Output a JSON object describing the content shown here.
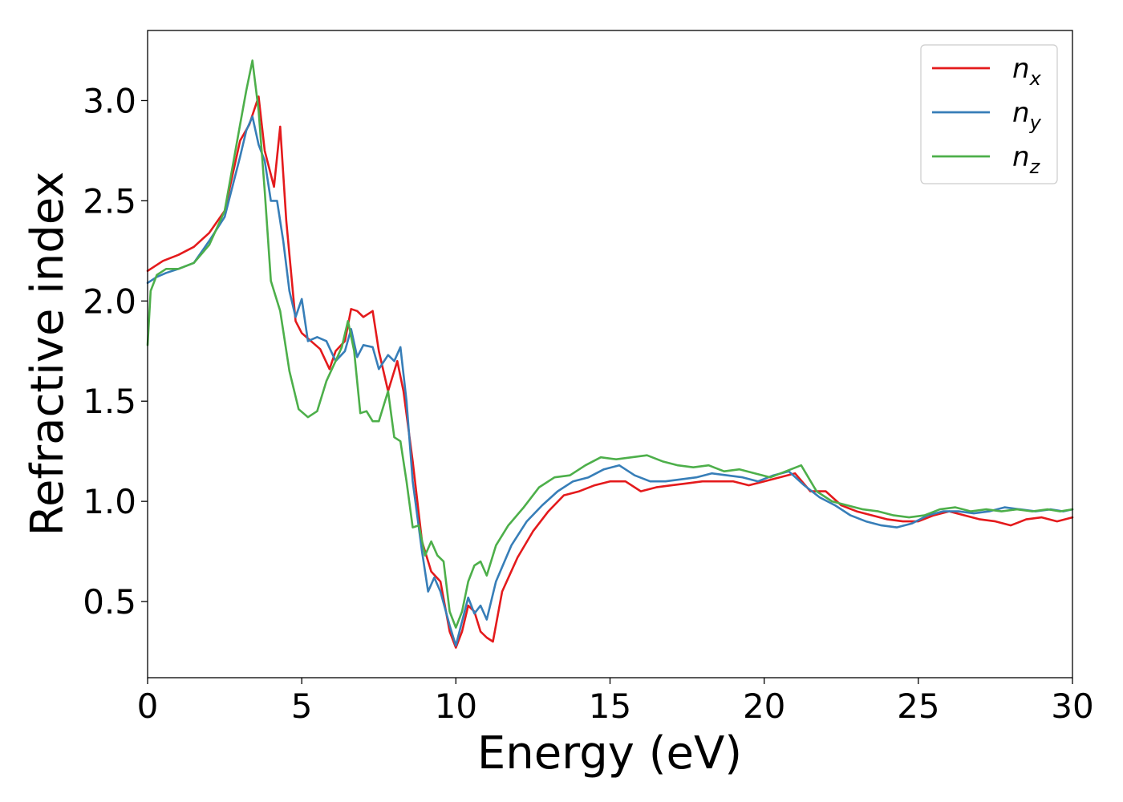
{
  "chart_data": {
    "type": "line",
    "xlabel": "Energy (eV)",
    "ylabel": "Refractive index",
    "xlim": [
      0,
      30
    ],
    "ylim": [
      0.12,
      3.35
    ],
    "xticks": [
      "0",
      "5",
      "10",
      "15",
      "20",
      "25",
      "30"
    ],
    "yticks": [
      "0.5",
      "1.0",
      "1.5",
      "2.0",
      "2.5",
      "3.0"
    ],
    "grid": false,
    "legend_position": "top-right",
    "series": [
      {
        "name": "n_x",
        "label_main": "n",
        "label_sub": "x",
        "color": "#e41a1c",
        "points": [
          [
            0,
            2.15
          ],
          [
            0.5,
            2.2
          ],
          [
            1,
            2.23
          ],
          [
            1.5,
            2.27
          ],
          [
            2,
            2.34
          ],
          [
            2.5,
            2.45
          ],
          [
            3,
            2.8
          ],
          [
            3.3,
            2.88
          ],
          [
            3.6,
            3.02
          ],
          [
            3.8,
            2.75
          ],
          [
            4.1,
            2.57
          ],
          [
            4.3,
            2.87
          ],
          [
            4.5,
            2.4
          ],
          [
            4.8,
            1.9
          ],
          [
            5,
            1.84
          ],
          [
            5.3,
            1.8
          ],
          [
            5.6,
            1.76
          ],
          [
            5.9,
            1.66
          ],
          [
            6.1,
            1.75
          ],
          [
            6.4,
            1.8
          ],
          [
            6.6,
            1.96
          ],
          [
            6.8,
            1.95
          ],
          [
            7,
            1.92
          ],
          [
            7.3,
            1.95
          ],
          [
            7.5,
            1.75
          ],
          [
            7.8,
            1.55
          ],
          [
            8.1,
            1.7
          ],
          [
            8.3,
            1.55
          ],
          [
            8.6,
            1.2
          ],
          [
            8.9,
            0.8
          ],
          [
            9.2,
            0.65
          ],
          [
            9.5,
            0.6
          ],
          [
            9.8,
            0.35
          ],
          [
            10,
            0.27
          ],
          [
            10.2,
            0.35
          ],
          [
            10.4,
            0.48
          ],
          [
            10.6,
            0.45
          ],
          [
            10.8,
            0.35
          ],
          [
            11,
            0.32
          ],
          [
            11.2,
            0.3
          ],
          [
            11.5,
            0.55
          ],
          [
            12,
            0.72
          ],
          [
            12.5,
            0.85
          ],
          [
            13,
            0.95
          ],
          [
            13.5,
            1.03
          ],
          [
            14,
            1.05
          ],
          [
            14.5,
            1.08
          ],
          [
            15,
            1.1
          ],
          [
            15.5,
            1.1
          ],
          [
            16,
            1.05
          ],
          [
            16.5,
            1.07
          ],
          [
            17,
            1.08
          ],
          [
            17.5,
            1.09
          ],
          [
            18,
            1.1
          ],
          [
            18.5,
            1.1
          ],
          [
            19,
            1.1
          ],
          [
            19.5,
            1.08
          ],
          [
            20,
            1.1
          ],
          [
            20.5,
            1.12
          ],
          [
            21,
            1.14
          ],
          [
            21.5,
            1.05
          ],
          [
            22,
            1.05
          ],
          [
            22.5,
            0.98
          ],
          [
            23,
            0.95
          ],
          [
            23.5,
            0.93
          ],
          [
            24,
            0.91
          ],
          [
            24.5,
            0.9
          ],
          [
            25,
            0.9
          ],
          [
            25.5,
            0.93
          ],
          [
            26,
            0.95
          ],
          [
            26.5,
            0.93
          ],
          [
            27,
            0.91
          ],
          [
            27.5,
            0.9
          ],
          [
            28,
            0.88
          ],
          [
            28.5,
            0.91
          ],
          [
            29,
            0.92
          ],
          [
            29.5,
            0.9
          ],
          [
            30,
            0.92
          ]
        ]
      },
      {
        "name": "n_y",
        "label_main": "n",
        "label_sub": "y",
        "color": "#377eb8",
        "points": [
          [
            0,
            2.09
          ],
          [
            0.3,
            2.12
          ],
          [
            0.6,
            2.14
          ],
          [
            1,
            2.16
          ],
          [
            1.5,
            2.19
          ],
          [
            2,
            2.3
          ],
          [
            2.5,
            2.42
          ],
          [
            3,
            2.72
          ],
          [
            3.2,
            2.85
          ],
          [
            3.4,
            2.92
          ],
          [
            3.6,
            2.78
          ],
          [
            3.8,
            2.7
          ],
          [
            4,
            2.5
          ],
          [
            4.2,
            2.5
          ],
          [
            4.4,
            2.3
          ],
          [
            4.6,
            2.05
          ],
          [
            4.8,
            1.92
          ],
          [
            5,
            2.01
          ],
          [
            5.2,
            1.8
          ],
          [
            5.5,
            1.82
          ],
          [
            5.8,
            1.8
          ],
          [
            6.1,
            1.7
          ],
          [
            6.4,
            1.75
          ],
          [
            6.6,
            1.86
          ],
          [
            6.8,
            1.72
          ],
          [
            7,
            1.78
          ],
          [
            7.3,
            1.77
          ],
          [
            7.5,
            1.66
          ],
          [
            7.8,
            1.73
          ],
          [
            8,
            1.7
          ],
          [
            8.2,
            1.77
          ],
          [
            8.4,
            1.5
          ],
          [
            8.6,
            1.1
          ],
          [
            8.9,
            0.75
          ],
          [
            9.1,
            0.55
          ],
          [
            9.3,
            0.62
          ],
          [
            9.5,
            0.55
          ],
          [
            9.8,
            0.38
          ],
          [
            10,
            0.28
          ],
          [
            10.2,
            0.4
          ],
          [
            10.4,
            0.52
          ],
          [
            10.6,
            0.44
          ],
          [
            10.8,
            0.48
          ],
          [
            11,
            0.41
          ],
          [
            11.3,
            0.6
          ],
          [
            11.8,
            0.78
          ],
          [
            12.3,
            0.9
          ],
          [
            12.8,
            0.98
          ],
          [
            13.3,
            1.05
          ],
          [
            13.8,
            1.1
          ],
          [
            14.3,
            1.12
          ],
          [
            14.8,
            1.16
          ],
          [
            15.3,
            1.18
          ],
          [
            15.8,
            1.13
          ],
          [
            16.3,
            1.1
          ],
          [
            16.8,
            1.1
          ],
          [
            17.3,
            1.11
          ],
          [
            17.8,
            1.12
          ],
          [
            18.3,
            1.14
          ],
          [
            18.8,
            1.13
          ],
          [
            19.3,
            1.12
          ],
          [
            19.8,
            1.1
          ],
          [
            20.3,
            1.13
          ],
          [
            20.8,
            1.15
          ],
          [
            21.3,
            1.08
          ],
          [
            21.8,
            1.02
          ],
          [
            22.3,
            0.98
          ],
          [
            22.8,
            0.93
          ],
          [
            23.3,
            0.9
          ],
          [
            23.8,
            0.88
          ],
          [
            24.3,
            0.87
          ],
          [
            24.8,
            0.89
          ],
          [
            25.3,
            0.93
          ],
          [
            25.8,
            0.95
          ],
          [
            26.3,
            0.95
          ],
          [
            26.8,
            0.94
          ],
          [
            27.3,
            0.95
          ],
          [
            27.8,
            0.97
          ],
          [
            28.3,
            0.96
          ],
          [
            28.8,
            0.95
          ],
          [
            29.3,
            0.96
          ],
          [
            29.7,
            0.95
          ],
          [
            30,
            0.96
          ]
        ]
      },
      {
        "name": "n_z",
        "label_main": "n",
        "label_sub": "z",
        "color": "#4daf4a",
        "points": [
          [
            0,
            1.78
          ],
          [
            0.1,
            2.05
          ],
          [
            0.3,
            2.13
          ],
          [
            0.6,
            2.16
          ],
          [
            1,
            2.16
          ],
          [
            1.5,
            2.19
          ],
          [
            2,
            2.28
          ],
          [
            2.5,
            2.45
          ],
          [
            3,
            2.88
          ],
          [
            3.2,
            3.05
          ],
          [
            3.4,
            3.2
          ],
          [
            3.6,
            2.95
          ],
          [
            3.8,
            2.55
          ],
          [
            4,
            2.1
          ],
          [
            4.3,
            1.95
          ],
          [
            4.6,
            1.65
          ],
          [
            4.9,
            1.46
          ],
          [
            5.2,
            1.42
          ],
          [
            5.5,
            1.45
          ],
          [
            5.8,
            1.6
          ],
          [
            6.1,
            1.7
          ],
          [
            6.3,
            1.77
          ],
          [
            6.5,
            1.9
          ],
          [
            6.7,
            1.75
          ],
          [
            6.9,
            1.44
          ],
          [
            7.1,
            1.45
          ],
          [
            7.3,
            1.4
          ],
          [
            7.5,
            1.4
          ],
          [
            7.8,
            1.55
          ],
          [
            8,
            1.32
          ],
          [
            8.2,
            1.3
          ],
          [
            8.4,
            1.1
          ],
          [
            8.6,
            0.87
          ],
          [
            8.8,
            0.88
          ],
          [
            9,
            0.73
          ],
          [
            9.2,
            0.8
          ],
          [
            9.4,
            0.73
          ],
          [
            9.6,
            0.7
          ],
          [
            9.8,
            0.45
          ],
          [
            10,
            0.37
          ],
          [
            10.2,
            0.45
          ],
          [
            10.4,
            0.6
          ],
          [
            10.6,
            0.68
          ],
          [
            10.8,
            0.7
          ],
          [
            11,
            0.63
          ],
          [
            11.3,
            0.78
          ],
          [
            11.7,
            0.88
          ],
          [
            12.2,
            0.97
          ],
          [
            12.7,
            1.07
          ],
          [
            13.2,
            1.12
          ],
          [
            13.7,
            1.13
          ],
          [
            14.2,
            1.18
          ],
          [
            14.7,
            1.22
          ],
          [
            15.2,
            1.21
          ],
          [
            15.7,
            1.22
          ],
          [
            16.2,
            1.23
          ],
          [
            16.7,
            1.2
          ],
          [
            17.2,
            1.18
          ],
          [
            17.7,
            1.17
          ],
          [
            18.2,
            1.18
          ],
          [
            18.7,
            1.15
          ],
          [
            19.2,
            1.16
          ],
          [
            19.7,
            1.14
          ],
          [
            20.2,
            1.12
          ],
          [
            20.7,
            1.15
          ],
          [
            21.2,
            1.18
          ],
          [
            21.7,
            1.05
          ],
          [
            22.2,
            1.0
          ],
          [
            22.7,
            0.98
          ],
          [
            23.2,
            0.96
          ],
          [
            23.7,
            0.95
          ],
          [
            24.2,
            0.93
          ],
          [
            24.7,
            0.92
          ],
          [
            25.2,
            0.93
          ],
          [
            25.7,
            0.96
          ],
          [
            26.2,
            0.97
          ],
          [
            26.7,
            0.95
          ],
          [
            27.2,
            0.96
          ],
          [
            27.7,
            0.95
          ],
          [
            28.2,
            0.96
          ],
          [
            28.7,
            0.95
          ],
          [
            29.2,
            0.96
          ],
          [
            29.6,
            0.95
          ],
          [
            30,
            0.96
          ]
        ]
      }
    ]
  }
}
